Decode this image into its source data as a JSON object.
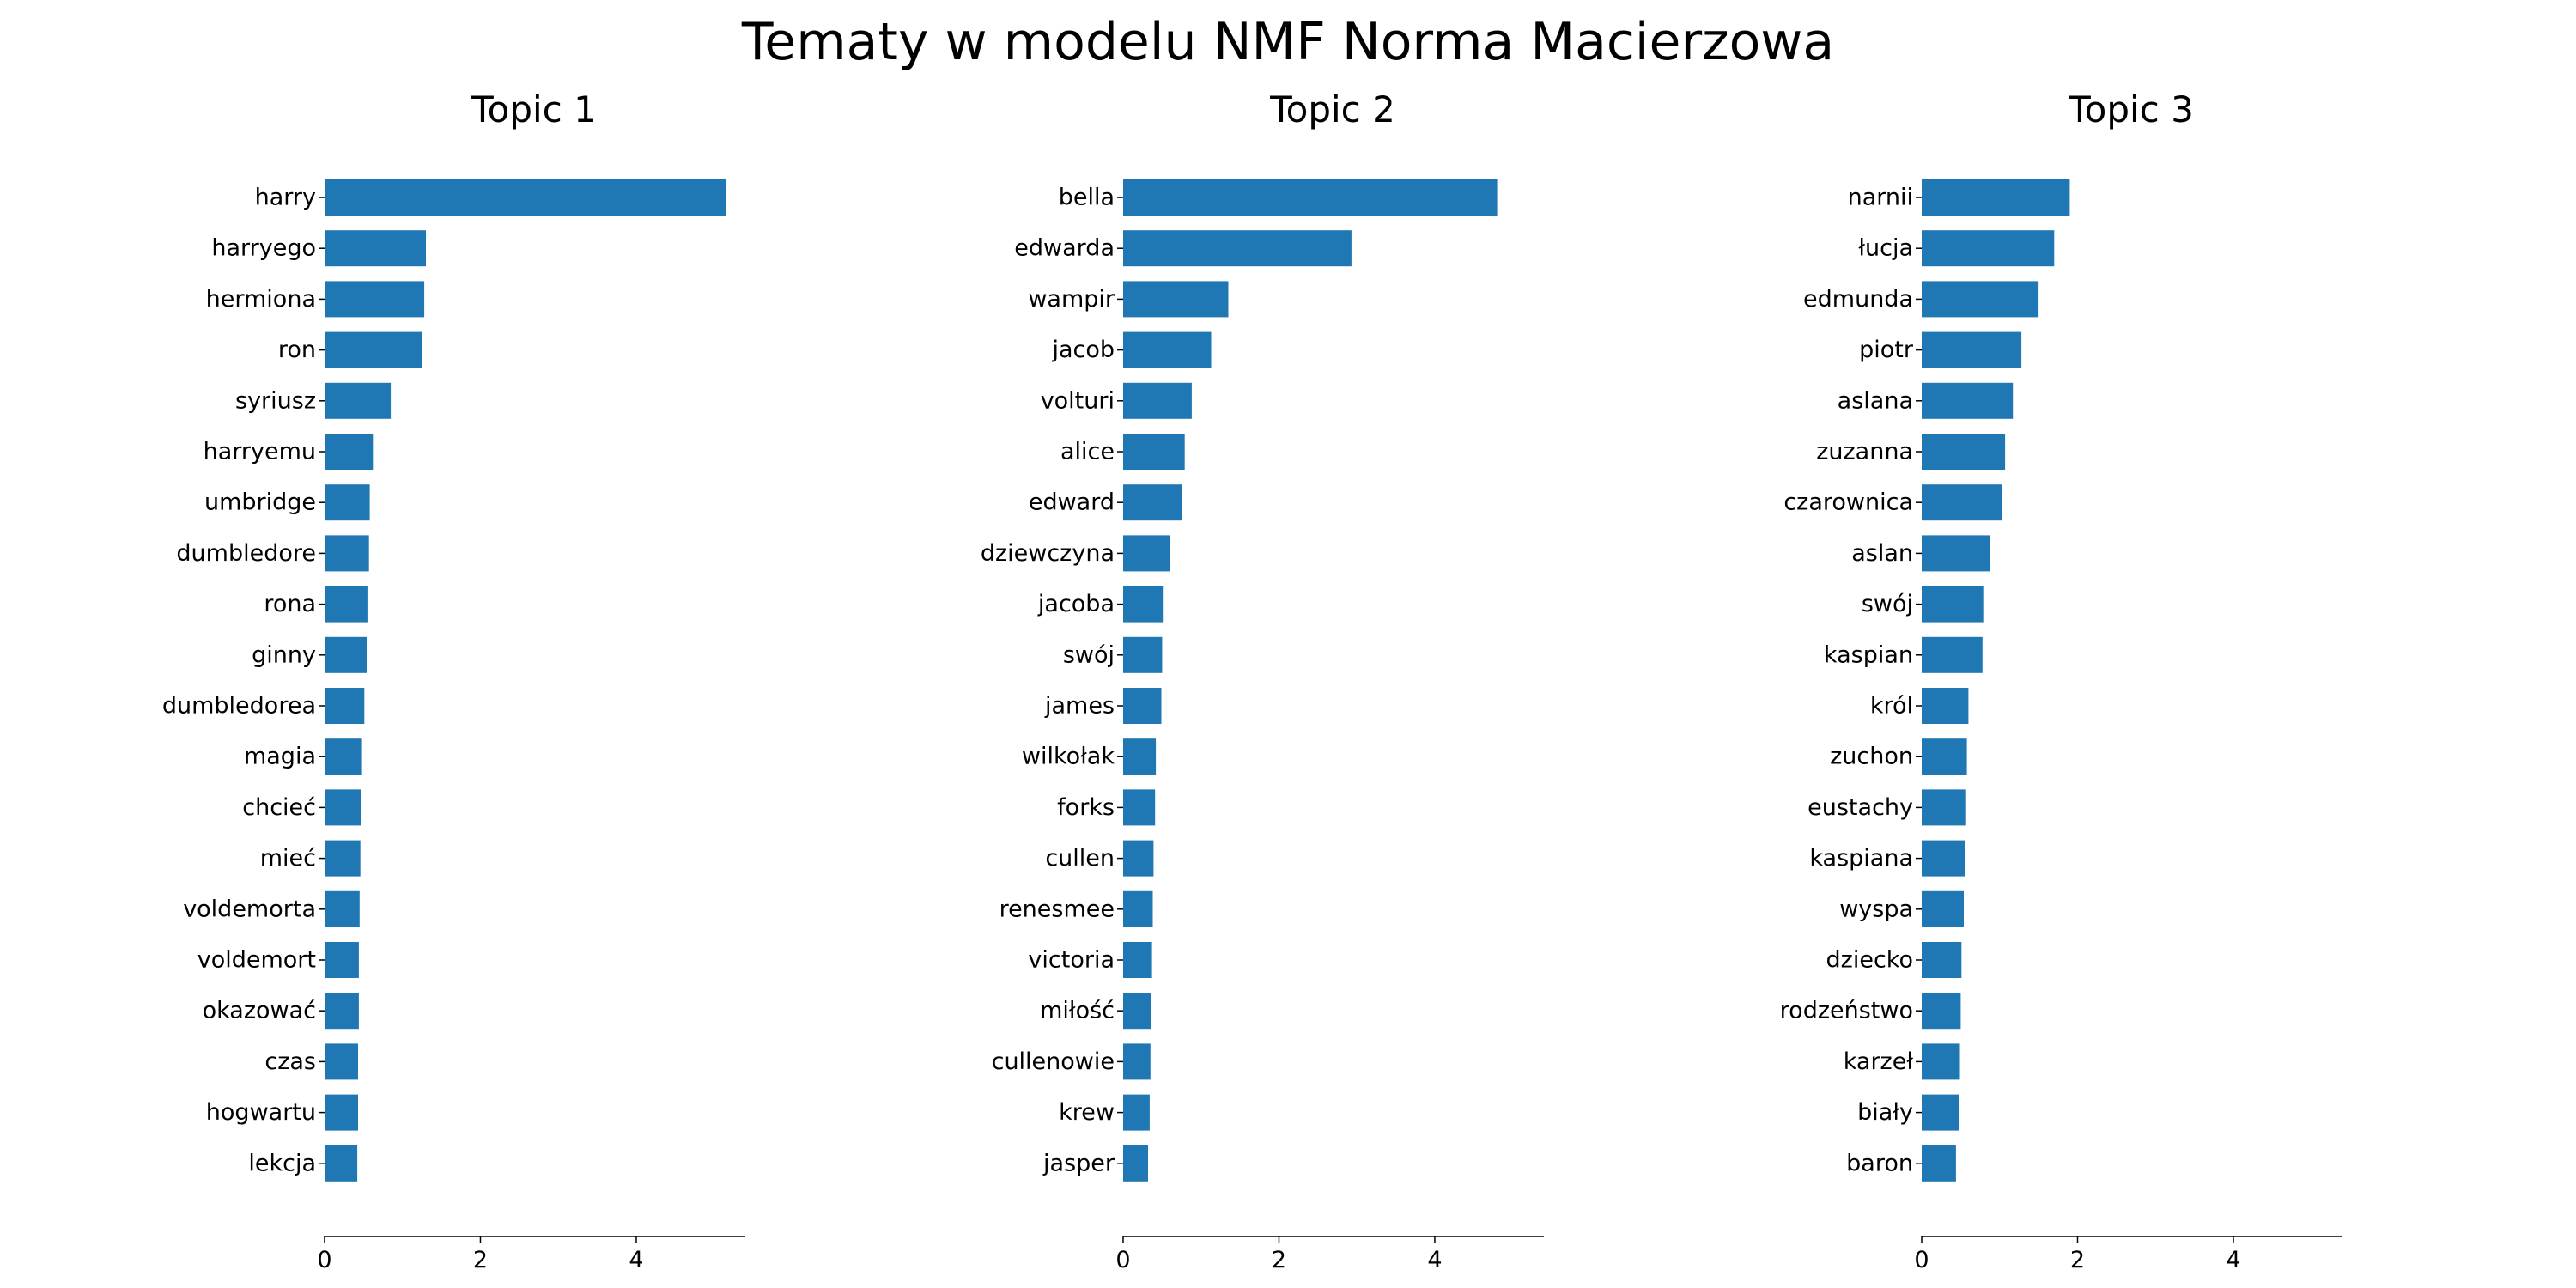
{
  "figure": {
    "title": "Tematy w modelu NMF Norma Macierzowa"
  },
  "chart_data": [
    {
      "type": "bar",
      "orientation": "horizontal",
      "title": "Topic 1",
      "xlabel": "",
      "ylabel": "",
      "xlim": [
        0,
        5.4
      ],
      "xticks": [
        0,
        2,
        4
      ],
      "categories": [
        "harry",
        "harryego",
        "hermiona",
        "ron",
        "syriusz",
        "harryemu",
        "umbridge",
        "dumbledore",
        "rona",
        "ginny",
        "dumbledorea",
        "magia",
        "chcieć",
        "mieć",
        "voldemorta",
        "voldemort",
        "okazować",
        "czas",
        "hogwartu",
        "lekcja"
      ],
      "values": [
        5.15,
        1.3,
        1.28,
        1.25,
        0.85,
        0.62,
        0.58,
        0.57,
        0.55,
        0.54,
        0.51,
        0.48,
        0.47,
        0.46,
        0.45,
        0.44,
        0.44,
        0.43,
        0.43,
        0.42
      ],
      "color": "#1f77b4"
    },
    {
      "type": "bar",
      "orientation": "horizontal",
      "title": "Topic 2",
      "xlabel": "",
      "ylabel": "",
      "xlim": [
        0,
        5.4
      ],
      "xticks": [
        0,
        2,
        4
      ],
      "categories": [
        "bella",
        "edwarda",
        "wampir",
        "jacob",
        "volturi",
        "alice",
        "edward",
        "dziewczyna",
        "jacoba",
        "swój",
        "james",
        "wilkołak",
        "forks",
        "cullen",
        "renesmee",
        "victoria",
        "miłość",
        "cullenowie",
        "krew",
        "jasper"
      ],
      "values": [
        4.8,
        2.93,
        1.35,
        1.13,
        0.88,
        0.79,
        0.75,
        0.6,
        0.52,
        0.5,
        0.49,
        0.42,
        0.41,
        0.39,
        0.38,
        0.37,
        0.36,
        0.35,
        0.34,
        0.32
      ],
      "color": "#1f77b4"
    },
    {
      "type": "bar",
      "orientation": "horizontal",
      "title": "Topic 3",
      "xlabel": "",
      "ylabel": "",
      "xlim": [
        0,
        5.4
      ],
      "xticks": [
        0,
        2,
        4
      ],
      "categories": [
        "narnii",
        "łucja",
        "edmunda",
        "piotr",
        "aslana",
        "zuzanna",
        "czarownica",
        "aslan",
        "swój",
        "kaspian",
        "król",
        "zuchon",
        "eustachy",
        "kaspiana",
        "wyspa",
        "dziecko",
        "rodzeństwo",
        "karzeł",
        "biały",
        "baron"
      ],
      "values": [
        1.9,
        1.7,
        1.5,
        1.28,
        1.17,
        1.07,
        1.03,
        0.88,
        0.79,
        0.78,
        0.6,
        0.58,
        0.57,
        0.56,
        0.54,
        0.51,
        0.5,
        0.49,
        0.48,
        0.44
      ],
      "color": "#1f77b4"
    }
  ]
}
